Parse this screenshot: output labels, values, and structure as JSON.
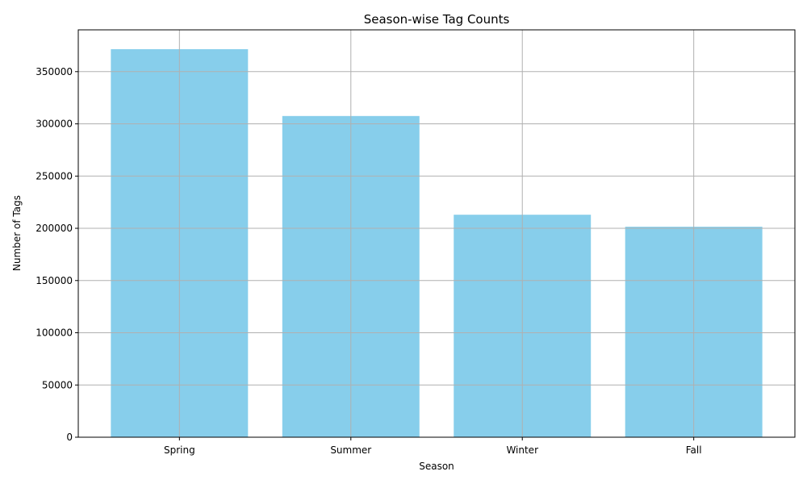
{
  "chart_data": {
    "type": "bar",
    "title": "Season-wise Tag Counts",
    "xlabel": "Season",
    "ylabel": "Number of Tags",
    "categories": [
      "Spring",
      "Summer",
      "Winter",
      "Fall"
    ],
    "values": [
      371500,
      307500,
      213000,
      201500
    ],
    "ylim": [
      0,
      390000
    ],
    "yticks": [
      0,
      50000,
      100000,
      150000,
      200000,
      250000,
      300000,
      350000
    ],
    "grid": true,
    "bar_color": "#87CEEB"
  }
}
